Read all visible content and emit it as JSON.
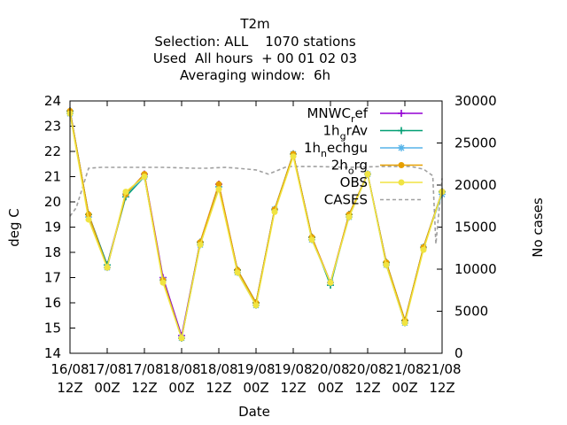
{
  "chart_data": {
    "type": "line",
    "title_lines": [
      "T2m",
      "Selection: ALL    1070 stations",
      "Used  All hours  + 00 01 02 03",
      "Averaging window:  6h"
    ],
    "xlabel": "Date",
    "ylabel": "deg C",
    "y2label": "No cases",
    "x_ticks": [
      {
        "top": "16/08",
        "bottom": "12Z"
      },
      {
        "top": "17/08",
        "bottom": "00Z"
      },
      {
        "top": "17/08",
        "bottom": "12Z"
      },
      {
        "top": "18/08",
        "bottom": "00Z"
      },
      {
        "top": "18/08",
        "bottom": "12Z"
      },
      {
        "top": "19/08",
        "bottom": "00Z"
      },
      {
        "top": "19/08",
        "bottom": "12Z"
      },
      {
        "top": "20/08",
        "bottom": "00Z"
      },
      {
        "top": "20/08",
        "bottom": "12Z"
      },
      {
        "top": "21/08",
        "bottom": "00Z"
      },
      {
        "top": "21/08",
        "bottom": "12Z"
      }
    ],
    "x_hours_range": [
      0,
      120
    ],
    "ylim": [
      14,
      24
    ],
    "y_ticks": [
      14,
      15,
      16,
      17,
      18,
      19,
      20,
      21,
      22,
      23,
      24
    ],
    "y2lim": [
      0,
      30000
    ],
    "y2_ticks": [
      0,
      5000,
      10000,
      15000,
      20000,
      25000,
      30000
    ],
    "legend_position": "top-right",
    "series": [
      {
        "name": "MNWC_ref",
        "label_parts": [
          "MNWC",
          "r",
          "ef"
        ],
        "color": "#9400d3",
        "marker": "plus",
        "x": [
          0,
          6,
          12,
          18,
          24,
          30,
          36,
          42,
          48,
          54,
          60,
          66,
          72,
          78,
          84,
          90,
          96,
          102,
          108,
          114,
          120
        ],
        "values": [
          23.6,
          19.5,
          17.5,
          20.3,
          21.1,
          17.0,
          14.7,
          18.4,
          20.7,
          17.3,
          16.0,
          19.7,
          21.9,
          18.6,
          16.8,
          19.5,
          21.1,
          17.6,
          15.3,
          18.2,
          20.4
        ]
      },
      {
        "name": "1h_grAv",
        "label_parts": [
          "1h",
          "g",
          "rAv"
        ],
        "color": "#009e73",
        "marker": "plus",
        "x": [
          0,
          6,
          12,
          18,
          24,
          30,
          36,
          42,
          48,
          54,
          60,
          66,
          72,
          78,
          84,
          90,
          96,
          102,
          108,
          114,
          120
        ],
        "values": [
          23.6,
          19.5,
          17.5,
          20.2,
          21.0,
          16.9,
          14.6,
          18.4,
          20.6,
          17.3,
          16.0,
          19.7,
          21.9,
          18.6,
          16.7,
          19.5,
          21.1,
          17.6,
          15.3,
          18.2,
          20.4
        ]
      },
      {
        "name": "1h_nechgu",
        "label_parts": [
          "1h",
          "n",
          "echgu"
        ],
        "color": "#56b4e9",
        "marker": "star",
        "x": [
          0,
          6,
          12,
          18,
          24,
          30,
          36,
          42,
          48,
          54,
          60,
          66,
          72,
          78,
          84,
          90,
          96,
          102,
          108,
          114,
          120
        ],
        "values": [
          23.5,
          19.4,
          17.4,
          20.3,
          21.0,
          16.9,
          14.6,
          18.3,
          20.6,
          17.2,
          15.9,
          19.7,
          21.9,
          18.5,
          16.8,
          19.4,
          21.1,
          17.5,
          15.2,
          18.2,
          20.3
        ]
      },
      {
        "name": "2h_org",
        "label_parts": [
          "2h",
          "o",
          "rg"
        ],
        "color": "#e69f00",
        "marker": "circle",
        "x": [
          0,
          6,
          12,
          18,
          24,
          30,
          36,
          42,
          48,
          54,
          60,
          66,
          72,
          78,
          84,
          90,
          96,
          102,
          108,
          114,
          120
        ],
        "values": [
          23.6,
          19.5,
          17.4,
          20.3,
          21.1,
          16.9,
          14.6,
          18.4,
          20.7,
          17.3,
          16.0,
          19.7,
          21.9,
          18.6,
          16.8,
          19.5,
          21.1,
          17.6,
          15.3,
          18.2,
          20.4
        ]
      },
      {
        "name": "OBS",
        "label_parts": [
          "OBS"
        ],
        "color": "#f0e442",
        "marker": "circle",
        "x": [
          0,
          6,
          12,
          18,
          24,
          30,
          36,
          42,
          48,
          54,
          60,
          66,
          72,
          78,
          84,
          90,
          96,
          102,
          108,
          114,
          120
        ],
        "values": [
          23.5,
          19.3,
          17.4,
          20.4,
          21.0,
          16.8,
          14.6,
          18.3,
          20.5,
          17.2,
          15.9,
          19.6,
          21.8,
          18.5,
          16.8,
          19.4,
          21.1,
          17.5,
          15.2,
          18.1,
          20.4
        ]
      },
      {
        "name": "CASES",
        "label_parts": [
          "CASES"
        ],
        "color": "#a0a0a0",
        "marker": "none",
        "axis": "y2",
        "dash": true,
        "x": [
          0,
          2,
          6,
          10,
          20,
          30,
          40,
          44,
          50,
          54,
          60,
          64,
          70,
          80,
          90,
          100,
          110,
          114,
          117,
          118,
          120
        ],
        "values": [
          16300,
          17300,
          22000,
          22100,
          22100,
          22100,
          22000,
          22000,
          22100,
          22000,
          21800,
          21300,
          22200,
          22200,
          22100,
          22200,
          22200,
          21900,
          21100,
          13000,
          20800
        ]
      }
    ]
  }
}
